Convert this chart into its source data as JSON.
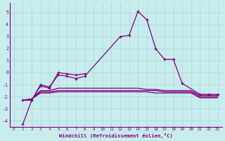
{
  "xlabel": "Windchill (Refroidissement éolien,°C)",
  "background_color": "#c8ecec",
  "line_color": "#800080",
  "grid_color": "#a8d8d8",
  "xlim": [
    -0.5,
    23.5
  ],
  "ylim": [
    -4.5,
    5.8
  ],
  "yticks": [
    -4,
    -3,
    -2,
    -1,
    0,
    1,
    2,
    3,
    4,
    5
  ],
  "xticks": [
    0,
    1,
    2,
    3,
    4,
    5,
    6,
    7,
    8,
    9,
    10,
    11,
    12,
    13,
    14,
    15,
    16,
    17,
    18,
    19,
    20,
    21,
    22,
    23
  ],
  "series": [
    [
      1,
      -4.3
    ],
    [
      1,
      -4.3,
      2,
      -2.3,
      3,
      -1.0,
      4,
      -1.2,
      5,
      -0.2,
      6,
      -0.3,
      7,
      -0.5,
      8,
      -0.3,
      12,
      3.0,
      13,
      3.1,
      14,
      5.1,
      15,
      4.4,
      16,
      2.0,
      17,
      1.1,
      18,
      1.1,
      19,
      -0.9,
      21,
      -1.8,
      22,
      -1.8,
      23,
      -1.8
    ],
    [
      1,
      -2.3,
      2,
      -2.3,
      3,
      -1.1,
      4,
      -1.3,
      5,
      0.0,
      6,
      -0.1,
      7,
      -0.2,
      8,
      -0.1
    ],
    [
      1,
      -2.3,
      2,
      -2.2,
      3,
      -1.5,
      4,
      -1.5,
      5,
      -1.3,
      6,
      -1.3,
      7,
      -1.3,
      8,
      -1.3,
      9,
      -1.3,
      10,
      -1.3,
      11,
      -1.3,
      12,
      -1.3,
      13,
      -1.3,
      14,
      -1.3,
      15,
      -1.4,
      16,
      -1.4,
      17,
      -1.5,
      18,
      -1.5,
      19,
      -1.5,
      20,
      -1.5,
      21,
      -1.9,
      22,
      -1.9,
      23,
      -1.9
    ],
    [
      1,
      -2.3,
      2,
      -2.2,
      3,
      -1.6,
      4,
      -1.6,
      5,
      -1.5,
      6,
      -1.5,
      7,
      -1.5,
      8,
      -1.5,
      9,
      -1.5,
      10,
      -1.5,
      11,
      -1.5,
      12,
      -1.5,
      13,
      -1.5,
      14,
      -1.5,
      15,
      -1.5,
      16,
      -1.5,
      17,
      -1.6,
      18,
      -1.6,
      19,
      -1.6,
      20,
      -1.6,
      21,
      -2.0,
      22,
      -2.0,
      23,
      -2.0
    ],
    [
      1,
      -2.3,
      2,
      -2.2,
      3,
      -1.7,
      4,
      -1.7,
      5,
      -1.6,
      6,
      -1.6,
      7,
      -1.6,
      8,
      -1.6,
      9,
      -1.6,
      10,
      -1.6,
      11,
      -1.6,
      12,
      -1.6,
      13,
      -1.6,
      14,
      -1.6,
      15,
      -1.6,
      16,
      -1.7,
      17,
      -1.7,
      18,
      -1.7,
      19,
      -1.7,
      20,
      -1.7,
      21,
      -2.1,
      22,
      -2.1,
      23,
      -2.1
    ]
  ],
  "markers": [
    true,
    false,
    true,
    false,
    false,
    false
  ]
}
